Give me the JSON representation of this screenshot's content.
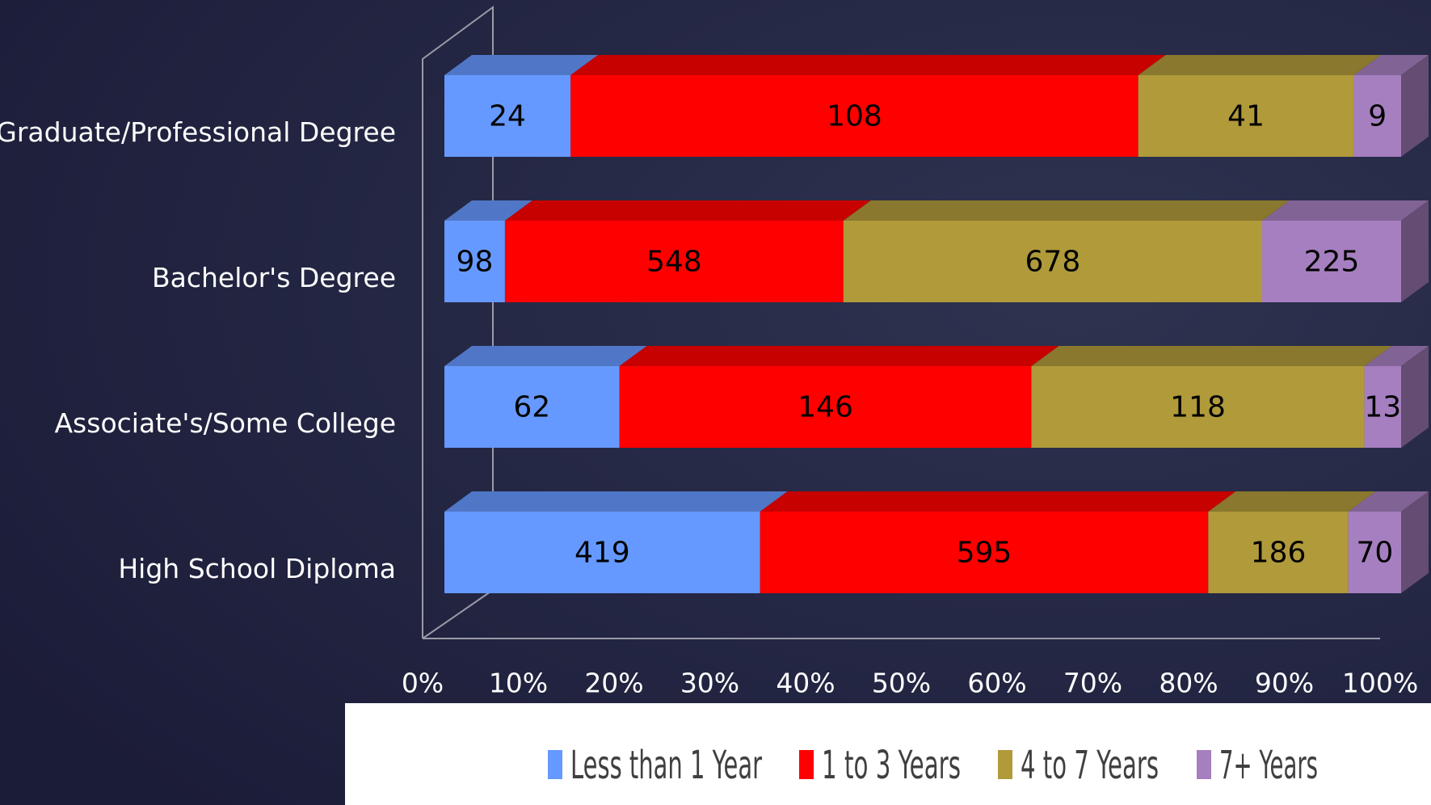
{
  "chart_data": {
    "type": "bar",
    "orientation": "horizontal",
    "stacked": "percent",
    "categories": [
      "Graduate/Professional Degree",
      "Bachelor's Degree",
      "Associate's/Some College",
      "High School Diploma"
    ],
    "series": [
      {
        "name": "Less than 1 Year",
        "color": "#6699ff",
        "values": [
          24,
          98,
          62,
          419
        ]
      },
      {
        "name": "1 to 3 Years",
        "color": "#ff0000",
        "values": [
          108,
          548,
          146,
          595
        ]
      },
      {
        "name": "4 to 7 Years",
        "color": "#b09a3a",
        "values": [
          41,
          678,
          118,
          186
        ]
      },
      {
        "name": "7+ Years",
        "color": "#a67fc0",
        "values": [
          9,
          225,
          13,
          70
        ]
      }
    ],
    "xlim": [
      0,
      100
    ],
    "xticks": [
      {
        "value": 0,
        "label": "0%"
      },
      {
        "value": 10,
        "label": "10%"
      },
      {
        "value": 20,
        "label": "20%"
      },
      {
        "value": 30,
        "label": "30%"
      },
      {
        "value": 40,
        "label": "40%"
      },
      {
        "value": 50,
        "label": "50%"
      },
      {
        "value": 60,
        "label": "60%"
      },
      {
        "value": 70,
        "label": "70%"
      },
      {
        "value": 80,
        "label": "80%"
      },
      {
        "value": 90,
        "label": "90%"
      },
      {
        "value": 100,
        "label": "100%"
      }
    ],
    "legend": "bottom"
  }
}
